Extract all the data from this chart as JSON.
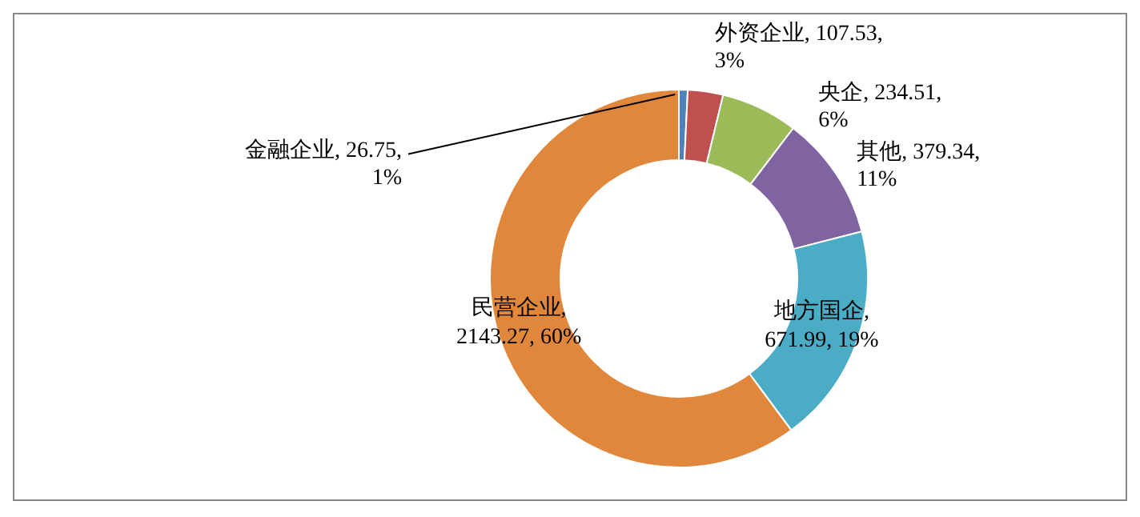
{
  "chart_data": {
    "type": "donut",
    "categories": [
      "金融企业",
      "外资企业",
      "央企",
      "其他",
      "地方国企",
      "民营企业"
    ],
    "values": [
      26.75,
      107.53,
      234.51,
      379.34,
      671.99,
      2143.27
    ],
    "colors": [
      "#4f81bd",
      "#c0504d",
      "#9bbb59",
      "#8064a2",
      "#4bacc6",
      "#e0873c"
    ],
    "value_labels": [
      ", 26.75, 1%",
      ", 107.53, 3%",
      ", 234.51, 6%",
      ", 379.34, 11%",
      ", 671.99, 19%",
      ", 2143.27, 60%"
    ]
  }
}
